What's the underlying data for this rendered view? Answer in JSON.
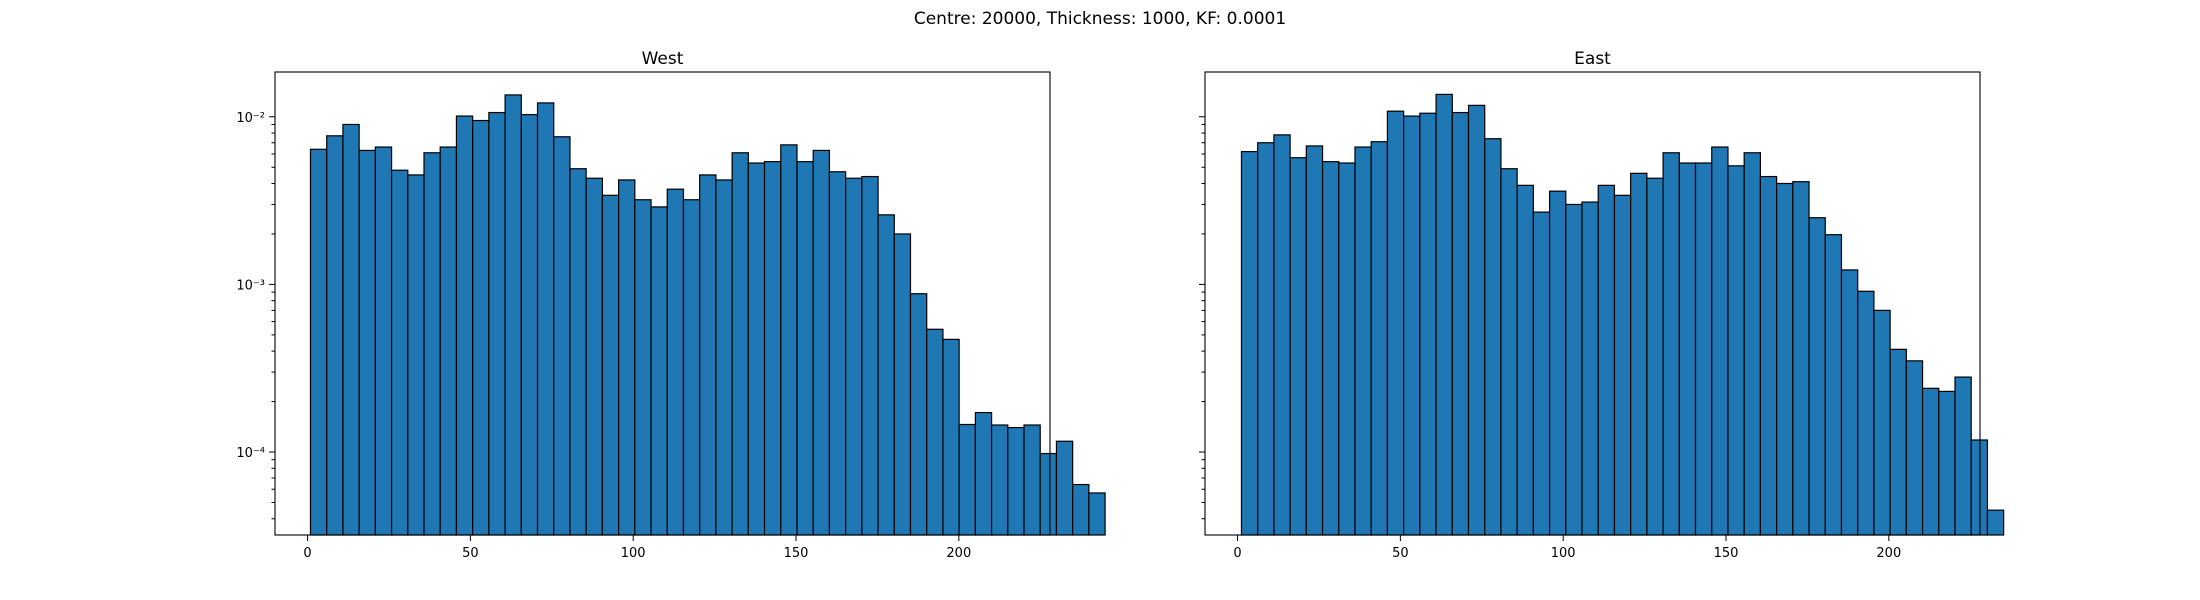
{
  "figure": {
    "suptitle": "Centre: 20000, Thickness: 1000, KF: 0.0001",
    "bar_color": "#1f77b4",
    "edge_color": "#000000"
  },
  "chart_data": [
    {
      "type": "bar",
      "title": "West",
      "xlabel": "",
      "ylabel": "",
      "yscale": "log",
      "xlim": [
        -10,
        228
      ],
      "ylim": [
        3.2e-05,
        0.0185
      ],
      "xticks": [
        0,
        50,
        100,
        150,
        200
      ],
      "yticks": [
        0.0001,
        0.001,
        0.01
      ],
      "ytick_labels": [
        "10⁻⁴",
        "10⁻³",
        "10⁻²"
      ],
      "bin_start": 0.9,
      "bin_width": 4.98,
      "values": [
        0.0064,
        0.0077,
        0.009,
        0.0063,
        0.0066,
        0.0048,
        0.0045,
        0.0061,
        0.0066,
        0.0101,
        0.0095,
        0.0106,
        0.0135,
        0.0103,
        0.0121,
        0.0076,
        0.0049,
        0.0043,
        0.0034,
        0.0042,
        0.0032,
        0.0029,
        0.0037,
        0.0032,
        0.0045,
        0.0042,
        0.0061,
        0.0053,
        0.0054,
        0.0068,
        0.0054,
        0.0063,
        0.0047,
        0.0043,
        0.0044,
        0.0026,
        0.002,
        0.00088,
        0.00054,
        0.00047,
        0.000146,
        0.000172,
        0.000145,
        0.00014,
        0.000145,
        9.8e-05,
        0.000116,
        6.4e-05,
        5.7e-05
      ]
    },
    {
      "type": "bar",
      "title": "East",
      "xlabel": "",
      "ylabel": "",
      "yscale": "log",
      "xlim": [
        -10,
        228
      ],
      "ylim": [
        3.2e-05,
        0.0185
      ],
      "xticks": [
        0,
        50,
        100,
        150,
        200
      ],
      "yticks": [
        0.0001,
        0.001,
        0.01
      ],
      "ytick_labels": [],
      "bin_start": 1.2,
      "bin_width": 4.98,
      "values": [
        0.0062,
        0.007,
        0.0078,
        0.0057,
        0.0067,
        0.0054,
        0.0053,
        0.0066,
        0.0071,
        0.0108,
        0.0101,
        0.0105,
        0.0136,
        0.0106,
        0.0117,
        0.0074,
        0.0049,
        0.0039,
        0.0027,
        0.0036,
        0.003,
        0.0031,
        0.0039,
        0.0034,
        0.0046,
        0.0043,
        0.0061,
        0.0053,
        0.0053,
        0.0066,
        0.0051,
        0.0061,
        0.0044,
        0.004,
        0.0041,
        0.0025,
        0.00198,
        0.00122,
        0.00091,
        0.0007,
        0.00041,
        0.00035,
        0.00024,
        0.00023,
        0.00028,
        0.000118,
        4.5e-05
      ]
    }
  ]
}
